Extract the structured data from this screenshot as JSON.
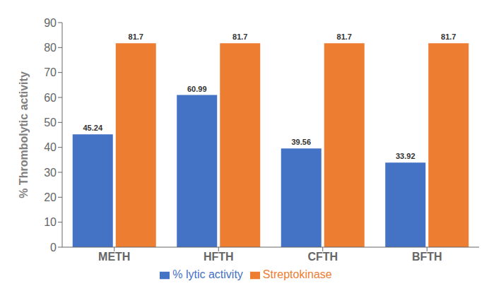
{
  "chart_data": {
    "type": "bar",
    "categories": [
      "METH",
      "HFTH",
      "CFTH",
      "BFTH"
    ],
    "series": [
      {
        "name": "% lytic activity",
        "color": "#4472C4",
        "values": [
          45.24,
          60.99,
          39.56,
          33.92
        ]
      },
      {
        "name": "Streptokinase",
        "color": "#ED7D31",
        "values": [
          81.7,
          81.7,
          81.7,
          81.7
        ]
      }
    ],
    "ylabel": "% Thrombolytic activity",
    "ylim": [
      0,
      90
    ],
    "yticks": [
      0,
      10,
      20,
      30,
      40,
      50,
      60,
      70,
      80,
      90
    ],
    "grid": false,
    "legend": "bottom",
    "data_labels": true
  }
}
